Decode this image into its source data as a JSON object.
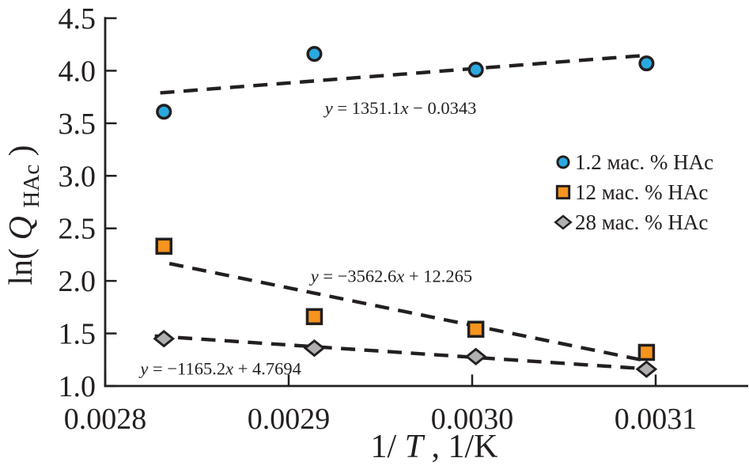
{
  "figure": {
    "background_color": "#ffffff",
    "ink_color": "#231f20"
  },
  "chart_data": {
    "type": "scatter",
    "title": "",
    "xlabel_plain": "1/T, 1/K",
    "ylabel_plain": "ln(Q_HAc)",
    "xlabel_parts": {
      "pre": "1/",
      "var": "T",
      "post": ", 1/K"
    },
    "ylabel_parts": {
      "pre": "ln(",
      "var": "Q",
      "sub": "HAc",
      "post": ")"
    },
    "xlim": [
      0.0028,
      0.00315
    ],
    "ylim": [
      1.0,
      4.5
    ],
    "x_ticks": [
      0.0028,
      0.0029,
      0.003,
      0.0031
    ],
    "x_tick_labels": [
      "0.0028",
      "0.0029",
      "0.0030",
      "0.0031"
    ],
    "y_ticks": [
      1.0,
      1.5,
      2.0,
      2.5,
      3.0,
      3.5,
      4.0,
      4.5
    ],
    "y_tick_labels": [
      "1.0",
      "1.5",
      "2.0",
      "2.5",
      "3.0",
      "3.5",
      "4.0",
      "4.5"
    ],
    "grid": false,
    "legend_position": "right-center",
    "line_style": "dashed",
    "series": [
      {
        "name": "1.2 мас. % HAc",
        "marker": "circle",
        "fill_color": "#2aa9e0",
        "stroke_color": "#231f20",
        "x": [
          0.002832,
          0.002914,
          0.003002,
          0.003095
        ],
        "y": [
          3.61,
          4.16,
          4.01,
          4.07
        ],
        "trend": {
          "slope": 1351.1,
          "intercept": -0.0343,
          "equation": "y = 1351.1x − 0.0343",
          "eq_parts": [
            "y",
            " = 1351.1",
            "x",
            " − 0.0343"
          ],
          "x_range": [
            0.00283,
            0.003096
          ],
          "label_at": [
            0.002961,
            3.59
          ]
        }
      },
      {
        "name": "12 мас. % HAc",
        "marker": "square",
        "fill_color": "#f7941d",
        "stroke_color": "#231f20",
        "x": [
          0.002832,
          0.002914,
          0.003002,
          0.003095
        ],
        "y": [
          2.33,
          1.66,
          1.54,
          1.32
        ],
        "trend": {
          "slope": -3562.6,
          "intercept": 12.265,
          "equation": "y = −3562.6x + 12.265",
          "eq_parts": [
            "y",
            " = −3562.6",
            "x",
            " + 12.265"
          ],
          "x_range": [
            0.002835,
            0.003092
          ],
          "label_at": [
            0.002956,
            1.99
          ]
        }
      },
      {
        "name": "28 мас. % HAc",
        "marker": "diamond",
        "fill_color": "#b0b0b0",
        "stroke_color": "#231f20",
        "x": [
          0.002832,
          0.002914,
          0.003002,
          0.003095
        ],
        "y": [
          1.45,
          1.36,
          1.28,
          1.16
        ],
        "trend": {
          "slope": -1165.2,
          "intercept": 4.7694,
          "equation": "y = −1165.2x + 4.7694",
          "eq_parts": [
            "y",
            " = −1165.2",
            "x",
            " + 4.7694"
          ],
          "x_range": [
            0.002827,
            0.003093
          ],
          "label_at": [
            0.002863,
            1.11
          ]
        }
      }
    ]
  }
}
